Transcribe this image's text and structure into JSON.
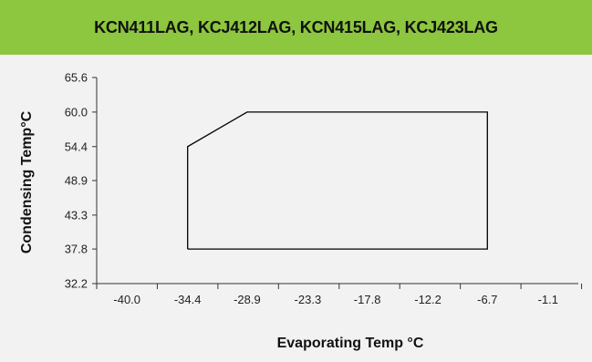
{
  "chart_data": {
    "type": "area",
    "title": "KCN411LAG, KCJ412LAG, KCN415LAG, KCJ423LAG",
    "xlabel": "Evaporating Temp °C",
    "ylabel": "Condensing Temp°C",
    "x_ticks": [
      -40.0,
      -34.4,
      -28.9,
      -23.3,
      -17.8,
      -12.2,
      -6.7,
      -1.1
    ],
    "x_tick_labels": [
      "-40.0",
      "-34.4",
      "-28.9",
      "-23.3",
      "-17.8",
      "-12.2",
      "-6.7",
      "-1.1"
    ],
    "y_ticks": [
      32.2,
      37.8,
      43.3,
      48.9,
      54.4,
      60.0,
      65.6
    ],
    "y_tick_labels": [
      "32.2",
      "37.8",
      "43.3",
      "48.9",
      "54.4",
      "60.0",
      "65.6"
    ],
    "xlim": [
      -42.8,
      1.7
    ],
    "ylim": [
      32.2,
      65.6
    ],
    "grid": false,
    "series": [
      {
        "x": [
          -34.4,
          -34.4,
          -28.9,
          -6.7,
          -6.7,
          -34.4
        ],
        "y": [
          37.8,
          54.4,
          60.0,
          60.0,
          37.8,
          37.8
        ]
      }
    ]
  },
  "colors": {
    "header": "#8dc63f",
    "panel": "#f2f2f2",
    "envelope_stroke": "#000000"
  }
}
